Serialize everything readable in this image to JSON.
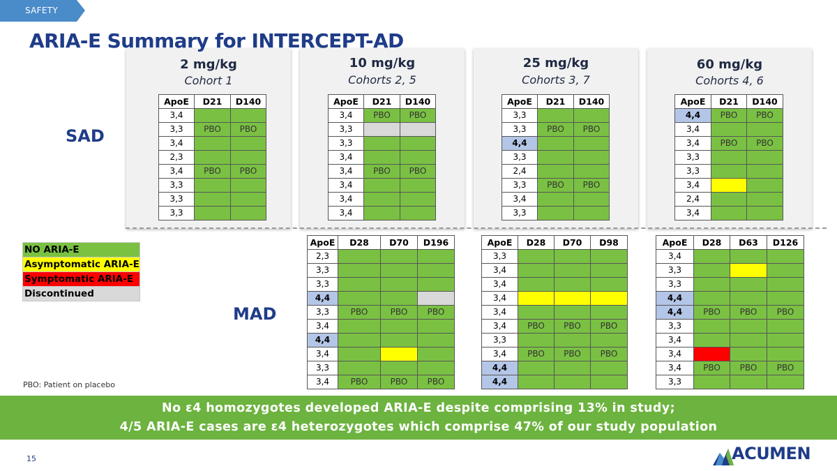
{
  "section_tag": "SAFETY",
  "title": "ARIA-E Summary for INTERCEPT-AD",
  "sections": {
    "sad": "SAD",
    "mad": "MAD"
  },
  "colors": {
    "no_aria_e": "#7ac143",
    "asymptomatic": "#ffff00",
    "symptomatic": "#ff0000",
    "discontinued": "#d9d9d9",
    "homozygote_highlight": "#b4c6e7"
  },
  "legend": [
    "NO ARIA-E",
    "Asymptomatic ARIA-E",
    "Symptomatic ARIA-E",
    "Discontinued"
  ],
  "note": "PBO: Patient on placebo",
  "dose_groups": [
    {
      "dose": "2 mg/kg",
      "cohort": "Cohort 1",
      "sad": {
        "headers": [
          "ApoE",
          "D21",
          "D140"
        ],
        "rows": [
          {
            "apoe": "3,4",
            "cells": [
              [
                "g",
                ""
              ],
              [
                "g",
                ""
              ]
            ]
          },
          {
            "apoe": "3,3",
            "cells": [
              [
                "g",
                "PBO"
              ],
              [
                "g",
                "PBO"
              ]
            ]
          },
          {
            "apoe": "3,4",
            "cells": [
              [
                "g",
                ""
              ],
              [
                "g",
                ""
              ]
            ]
          },
          {
            "apoe": "2,3",
            "cells": [
              [
                "g",
                ""
              ],
              [
                "g",
                ""
              ]
            ]
          },
          {
            "apoe": "3,4",
            "cells": [
              [
                "g",
                "PBO"
              ],
              [
                "g",
                "PBO"
              ]
            ]
          },
          {
            "apoe": "3,3",
            "cells": [
              [
                "g",
                ""
              ],
              [
                "g",
                ""
              ]
            ]
          },
          {
            "apoe": "3,3",
            "cells": [
              [
                "g",
                ""
              ],
              [
                "g",
                ""
              ]
            ]
          },
          {
            "apoe": "3,3",
            "cells": [
              [
                "g",
                ""
              ],
              [
                "g",
                ""
              ]
            ]
          }
        ]
      }
    },
    {
      "dose": "10 mg/kg",
      "cohort": "Cohorts 2, 5",
      "sad": {
        "headers": [
          "ApoE",
          "D21",
          "D140"
        ],
        "rows": [
          {
            "apoe": "3,4",
            "cells": [
              [
                "g",
                "PBO"
              ],
              [
                "g",
                "PBO"
              ]
            ]
          },
          {
            "apoe": "3,3",
            "cells": [
              [
                "d",
                ""
              ],
              [
                "d",
                ""
              ]
            ]
          },
          {
            "apoe": "3,3",
            "cells": [
              [
                "g",
                ""
              ],
              [
                "g",
                ""
              ]
            ]
          },
          {
            "apoe": "3,4",
            "cells": [
              [
                "g",
                ""
              ],
              [
                "g",
                ""
              ]
            ]
          },
          {
            "apoe": "3,4",
            "cells": [
              [
                "g",
                "PBO"
              ],
              [
                "g",
                "PBO"
              ]
            ]
          },
          {
            "apoe": "3,4",
            "cells": [
              [
                "g",
                ""
              ],
              [
                "g",
                ""
              ]
            ]
          },
          {
            "apoe": "3,4",
            "cells": [
              [
                "g",
                ""
              ],
              [
                "g",
                ""
              ]
            ]
          },
          {
            "apoe": "3,4",
            "cells": [
              [
                "g",
                ""
              ],
              [
                "g",
                ""
              ]
            ]
          }
        ]
      },
      "mad": {
        "headers": [
          "ApoE",
          "D28",
          "D70",
          "D196"
        ],
        "rows": [
          {
            "apoe": "2,3",
            "cells": [
              [
                "g",
                ""
              ],
              [
                "g",
                ""
              ],
              [
                "g",
                ""
              ]
            ]
          },
          {
            "apoe": "3,3",
            "cells": [
              [
                "g",
                ""
              ],
              [
                "g",
                ""
              ],
              [
                "g",
                ""
              ]
            ]
          },
          {
            "apoe": "3,3",
            "cells": [
              [
                "g",
                ""
              ],
              [
                "g",
                ""
              ],
              [
                "g",
                ""
              ]
            ]
          },
          {
            "apoe": "4,4",
            "hl": true,
            "cells": [
              [
                "g",
                ""
              ],
              [
                "g",
                ""
              ],
              [
                "d",
                ""
              ]
            ]
          },
          {
            "apoe": "3,3",
            "cells": [
              [
                "g",
                "PBO"
              ],
              [
                "g",
                "PBO"
              ],
              [
                "g",
                "PBO"
              ]
            ]
          },
          {
            "apoe": "3,4",
            "cells": [
              [
                "g",
                ""
              ],
              [
                "g",
                ""
              ],
              [
                "g",
                ""
              ]
            ]
          },
          {
            "apoe": "4,4",
            "hl": true,
            "cells": [
              [
                "g",
                ""
              ],
              [
                "g",
                ""
              ],
              [
                "g",
                ""
              ]
            ]
          },
          {
            "apoe": "3,4",
            "cells": [
              [
                "g",
                ""
              ],
              [
                "y",
                ""
              ],
              [
                "g",
                ""
              ]
            ]
          },
          {
            "apoe": "3,3",
            "cells": [
              [
                "g",
                ""
              ],
              [
                "g",
                ""
              ],
              [
                "g",
                ""
              ]
            ]
          },
          {
            "apoe": "3,4",
            "cells": [
              [
                "g",
                "PBO"
              ],
              [
                "g",
                "PBO"
              ],
              [
                "g",
                "PBO"
              ]
            ]
          }
        ]
      }
    },
    {
      "dose": "25 mg/kg",
      "cohort": "Cohorts 3, 7",
      "sad": {
        "headers": [
          "ApoE",
          "D21",
          "D140"
        ],
        "rows": [
          {
            "apoe": "3,3",
            "cells": [
              [
                "g",
                ""
              ],
              [
                "g",
                ""
              ]
            ]
          },
          {
            "apoe": "3,3",
            "cells": [
              [
                "g",
                "PBO"
              ],
              [
                "g",
                "PBO"
              ]
            ]
          },
          {
            "apoe": "4,4",
            "hl": true,
            "cells": [
              [
                "g",
                ""
              ],
              [
                "g",
                ""
              ]
            ]
          },
          {
            "apoe": "3,3",
            "cells": [
              [
                "g",
                ""
              ],
              [
                "g",
                ""
              ]
            ]
          },
          {
            "apoe": "2,4",
            "cells": [
              [
                "g",
                ""
              ],
              [
                "g",
                ""
              ]
            ]
          },
          {
            "apoe": "3,3",
            "cells": [
              [
                "g",
                "PBO"
              ],
              [
                "g",
                "PBO"
              ]
            ]
          },
          {
            "apoe": "3,4",
            "cells": [
              [
                "g",
                ""
              ],
              [
                "g",
                ""
              ]
            ]
          },
          {
            "apoe": "3,3",
            "cells": [
              [
                "g",
                ""
              ],
              [
                "g",
                ""
              ]
            ]
          }
        ]
      },
      "mad": {
        "headers": [
          "ApoE",
          "D28",
          "D70",
          "D98"
        ],
        "rows": [
          {
            "apoe": "3,3",
            "cells": [
              [
                "g",
                ""
              ],
              [
                "g",
                ""
              ],
              [
                "g",
                ""
              ]
            ]
          },
          {
            "apoe": "3,4",
            "cells": [
              [
                "g",
                ""
              ],
              [
                "g",
                ""
              ],
              [
                "g",
                ""
              ]
            ]
          },
          {
            "apoe": "3,4",
            "cells": [
              [
                "g",
                ""
              ],
              [
                "g",
                ""
              ],
              [
                "g",
                ""
              ]
            ]
          },
          {
            "apoe": "3,4",
            "cells": [
              [
                "y",
                ""
              ],
              [
                "y",
                ""
              ],
              [
                "y",
                ""
              ]
            ]
          },
          {
            "apoe": "3,4",
            "cells": [
              [
                "g",
                ""
              ],
              [
                "g",
                ""
              ],
              [
                "g",
                ""
              ]
            ]
          },
          {
            "apoe": "3,4",
            "cells": [
              [
                "g",
                "PBO"
              ],
              [
                "g",
                "PBO"
              ],
              [
                "g",
                "PBO"
              ]
            ]
          },
          {
            "apoe": "3,3",
            "cells": [
              [
                "g",
                ""
              ],
              [
                "g",
                ""
              ],
              [
                "g",
                ""
              ]
            ]
          },
          {
            "apoe": "3,4",
            "cells": [
              [
                "g",
                "PBO"
              ],
              [
                "g",
                "PBO"
              ],
              [
                "g",
                "PBO"
              ]
            ]
          },
          {
            "apoe": "4,4",
            "hl": true,
            "cells": [
              [
                "g",
                ""
              ],
              [
                "g",
                ""
              ],
              [
                "g",
                ""
              ]
            ]
          },
          {
            "apoe": "4,4",
            "hl": true,
            "cells": [
              [
                "g",
                ""
              ],
              [
                "g",
                ""
              ],
              [
                "g",
                ""
              ]
            ]
          }
        ]
      }
    },
    {
      "dose": "60 mg/kg",
      "cohort": "Cohorts 4, 6",
      "sad": {
        "headers": [
          "ApoE",
          "D21",
          "D140"
        ],
        "rows": [
          {
            "apoe": "4,4",
            "hl": true,
            "cells": [
              [
                "g",
                "PBO"
              ],
              [
                "g",
                "PBO"
              ]
            ]
          },
          {
            "apoe": "3,4",
            "cells": [
              [
                "g",
                ""
              ],
              [
                "g",
                ""
              ]
            ]
          },
          {
            "apoe": "3,4",
            "cells": [
              [
                "g",
                "PBO"
              ],
              [
                "g",
                "PBO"
              ]
            ]
          },
          {
            "apoe": "3,3",
            "cells": [
              [
                "g",
                ""
              ],
              [
                "g",
                ""
              ]
            ]
          },
          {
            "apoe": "3,3",
            "cells": [
              [
                "g",
                ""
              ],
              [
                "g",
                ""
              ]
            ]
          },
          {
            "apoe": "3,4",
            "cells": [
              [
                "y",
                ""
              ],
              [
                "g",
                ""
              ]
            ]
          },
          {
            "apoe": "2,4",
            "cells": [
              [
                "g",
                ""
              ],
              [
                "g",
                ""
              ]
            ]
          },
          {
            "apoe": "3,4",
            "cells": [
              [
                "g",
                ""
              ],
              [
                "g",
                ""
              ]
            ]
          }
        ]
      },
      "mad": {
        "headers": [
          "ApoE",
          "D28",
          "D63",
          "D126"
        ],
        "rows": [
          {
            "apoe": "3,4",
            "cells": [
              [
                "g",
                ""
              ],
              [
                "g",
                ""
              ],
              [
                "g",
                ""
              ]
            ]
          },
          {
            "apoe": "3,3",
            "cells": [
              [
                "g",
                ""
              ],
              [
                "y",
                ""
              ],
              [
                "g",
                ""
              ]
            ]
          },
          {
            "apoe": "3,3",
            "cells": [
              [
                "g",
                ""
              ],
              [
                "g",
                ""
              ],
              [
                "g",
                ""
              ]
            ]
          },
          {
            "apoe": "4,4",
            "hl": true,
            "cells": [
              [
                "g",
                ""
              ],
              [
                "g",
                ""
              ],
              [
                "g",
                ""
              ]
            ]
          },
          {
            "apoe": "4,4",
            "hl": true,
            "cells": [
              [
                "g",
                "PBO"
              ],
              [
                "g",
                "PBO"
              ],
              [
                "g",
                "PBO"
              ]
            ]
          },
          {
            "apoe": "3,3",
            "cells": [
              [
                "g",
                ""
              ],
              [
                "g",
                ""
              ],
              [
                "g",
                ""
              ]
            ]
          },
          {
            "apoe": "3,4",
            "cells": [
              [
                "g",
                ""
              ],
              [
                "g",
                ""
              ],
              [
                "g",
                ""
              ]
            ]
          },
          {
            "apoe": "3,4",
            "cells": [
              [
                "r",
                ""
              ],
              [
                "g",
                ""
              ],
              [
                "g",
                ""
              ]
            ]
          },
          {
            "apoe": "3,4",
            "cells": [
              [
                "g",
                "PBO"
              ],
              [
                "g",
                "PBO"
              ],
              [
                "g",
                "PBO"
              ]
            ]
          },
          {
            "apoe": "3,3",
            "cells": [
              [
                "g",
                ""
              ],
              [
                "g",
                ""
              ],
              [
                "g",
                ""
              ]
            ]
          }
        ]
      }
    }
  ],
  "banner": [
    "No ε4 homozygotes developed ARIA-E despite comprising 13% in study;",
    "4/5 ARIA-E cases are ε4 heterozygotes which comprise 47% of our study population"
  ],
  "page_number": "15",
  "logo_text": "ACUMEN",
  "logo_icon": "mountain-logo-icon"
}
